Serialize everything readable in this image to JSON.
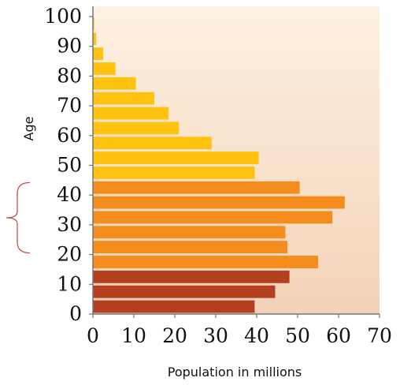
{
  "chart_data": {
    "type": "bar",
    "orientation": "horizontal",
    "xlabel": "Population in millions",
    "ylabel": "Age",
    "xlim": [
      0,
      70
    ],
    "ylim": [
      0,
      100
    ],
    "xticks": [
      "0",
      "10",
      "20",
      "30",
      "40",
      "50",
      "60",
      "70"
    ],
    "yticks": [
      "0",
      "10",
      "20",
      "30",
      "40",
      "50",
      "60",
      "70",
      "80",
      "90",
      "100"
    ],
    "grid": false,
    "legend": "none",
    "bands": [
      {
        "age_start": 0,
        "age_end": 5,
        "value": 39.5,
        "color": "#b5401f"
      },
      {
        "age_start": 5,
        "age_end": 10,
        "value": 44.5,
        "color": "#b5401f"
      },
      {
        "age_start": 10,
        "age_end": 15,
        "value": 48,
        "color": "#b5401f"
      },
      {
        "age_start": 15,
        "age_end": 20,
        "value": 55,
        "color": "#f58c1e"
      },
      {
        "age_start": 20,
        "age_end": 25,
        "value": 47.5,
        "color": "#f58c1e"
      },
      {
        "age_start": 25,
        "age_end": 30,
        "value": 47,
        "color": "#f58c1e"
      },
      {
        "age_start": 30,
        "age_end": 35,
        "value": 58.5,
        "color": "#f58c1e"
      },
      {
        "age_start": 35,
        "age_end": 40,
        "value": 61.5,
        "color": "#f58c1e"
      },
      {
        "age_start": 40,
        "age_end": 45,
        "value": 50.5,
        "color": "#f58c1e"
      },
      {
        "age_start": 45,
        "age_end": 50,
        "value": 39.5,
        "color": "#ffc20e"
      },
      {
        "age_start": 50,
        "age_end": 55,
        "value": 40.5,
        "color": "#ffc20e"
      },
      {
        "age_start": 55,
        "age_end": 60,
        "value": 29,
        "color": "#ffc20e"
      },
      {
        "age_start": 60,
        "age_end": 65,
        "value": 21,
        "color": "#ffc20e"
      },
      {
        "age_start": 65,
        "age_end": 70,
        "value": 18.5,
        "color": "#ffc20e"
      },
      {
        "age_start": 70,
        "age_end": 75,
        "value": 15,
        "color": "#ffc20e"
      },
      {
        "age_start": 75,
        "age_end": 80,
        "value": 10.5,
        "color": "#ffc20e"
      },
      {
        "age_start": 80,
        "age_end": 85,
        "value": 5.5,
        "color": "#ffc20e"
      },
      {
        "age_start": 85,
        "age_end": 90,
        "value": 2.5,
        "color": "#ffc20e"
      },
      {
        "age_start": 90,
        "age_end": 95,
        "value": 0.8,
        "color": "#ffc20e"
      },
      {
        "age_start": 95,
        "age_end": 100,
        "value": 0.3,
        "color": "#ffc20e"
      }
    ],
    "annotations": [
      {
        "type": "bracket",
        "age_start": 20,
        "age_end": 45,
        "color": "#c0504d"
      }
    ],
    "colors": {
      "background_light": "#fdf1e2",
      "background_dark": "#f3d3b7",
      "axis": "#777777"
    }
  }
}
